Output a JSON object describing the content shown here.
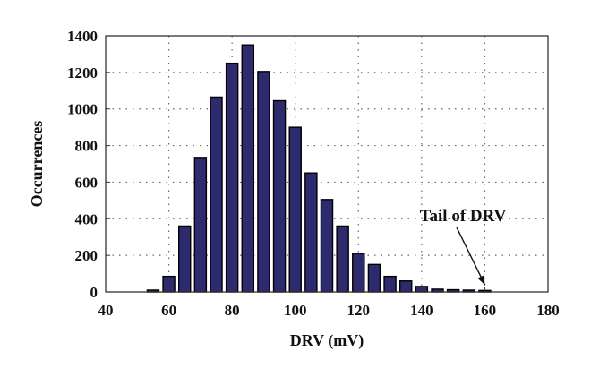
{
  "chart_data": {
    "type": "bar",
    "xlabel": "DRV (mV)",
    "ylabel": "Occurrences",
    "xlim": [
      40,
      180
    ],
    "ylim": [
      0,
      1400
    ],
    "xticks": [
      40,
      60,
      80,
      100,
      120,
      140,
      160,
      180
    ],
    "yticks": [
      0,
      200,
      400,
      600,
      800,
      1000,
      1200,
      1400
    ],
    "grid": true,
    "bar_color": "#2e2a6e",
    "x": [
      55,
      60,
      65,
      70,
      75,
      80,
      85,
      90,
      95,
      100,
      105,
      110,
      115,
      120,
      125,
      130,
      135,
      140,
      145,
      150,
      155,
      160
    ],
    "values": [
      10,
      85,
      360,
      735,
      1065,
      1250,
      1350,
      1205,
      1045,
      900,
      650,
      505,
      360,
      210,
      150,
      85,
      60,
      30,
      15,
      12,
      10,
      8
    ],
    "annotation": {
      "text": "Tail of DRV",
      "points_to_x": 160,
      "points_to_y": 10
    }
  }
}
